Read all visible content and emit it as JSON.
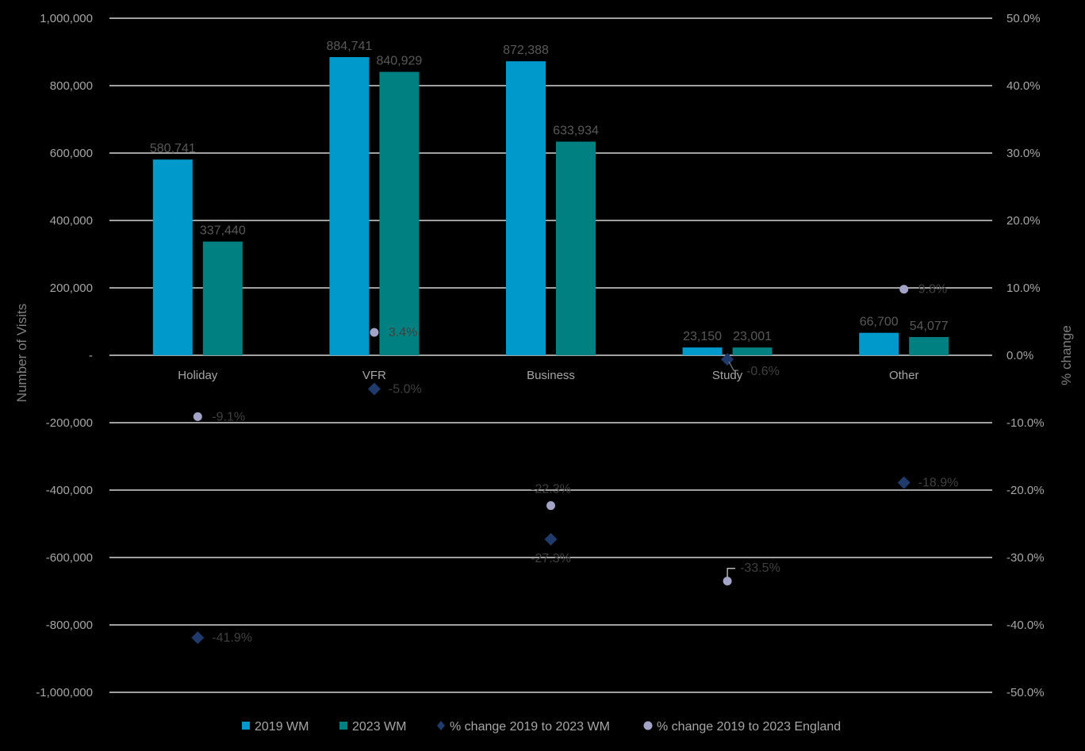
{
  "chart_data": {
    "type": "bar",
    "categories": [
      "Holiday",
      "VFR",
      "Business",
      "Study",
      "Other"
    ],
    "series": [
      {
        "name": "2019 WM",
        "kind": "bar",
        "axis": "left",
        "color": "#0099cc",
        "values": [
          580741,
          884741,
          872388,
          23150,
          66700
        ],
        "labels": [
          "580,741",
          "884,741",
          "872,388",
          "23,150",
          "66,700"
        ]
      },
      {
        "name": "2023 WM",
        "kind": "bar",
        "axis": "left",
        "color": "#008080",
        "values": [
          337440,
          840929,
          633934,
          23001,
          54077
        ],
        "labels": [
          "337,440",
          "840,929",
          "633,934",
          "23,001",
          "54,077"
        ]
      },
      {
        "name": "% change 2019 to 2023 WM",
        "kind": "diamond",
        "axis": "right",
        "color": "#1f3a6b",
        "values": [
          -41.9,
          -5.0,
          -27.3,
          -0.6,
          -18.9
        ],
        "labels": [
          "-41.9%",
          "-5.0%",
          "-27.3%",
          "-0.6%",
          "-18.9%"
        ]
      },
      {
        "name": "% change 2019 to 2023 England",
        "kind": "circle",
        "axis": "right",
        "color": "#a3a3c8",
        "values": [
          -9.1,
          3.4,
          -22.3,
          -33.5,
          9.8
        ],
        "labels": [
          "-9.1%",
          "3.4%",
          "-22.3%",
          "-33.5%",
          "9.8%"
        ]
      }
    ],
    "left_axis": {
      "title": "Number of Visits",
      "range": [
        -1000000,
        1000000
      ],
      "ticks": [
        1000000,
        800000,
        600000,
        400000,
        200000,
        0,
        -200000,
        -400000,
        -600000,
        -800000,
        -1000000
      ],
      "tick_labels": [
        "1,000,000",
        "800,000",
        "600,000",
        "400,000",
        "200,000",
        "-",
        "-200,000",
        "-400,000",
        "-600,000",
        "-800,000",
        "-1,000,000"
      ]
    },
    "right_axis": {
      "title": "% change",
      "range": [
        -50,
        50
      ],
      "tick_labels": [
        "50.0%",
        "40.0%",
        "30.0%",
        "20.0%",
        "10.0%",
        "0.0%",
        "-10.0%",
        "-20.0%",
        "-30.0%",
        "-40.0%",
        "-50.0%"
      ]
    },
    "grid": true,
    "legend_position": "bottom"
  },
  "colors": {
    "background": "#000000",
    "gridline": "#ffffff",
    "tick_text": "#a6a6a6",
    "bar_label_text": "#595959",
    "point_label_text": "#404040"
  }
}
